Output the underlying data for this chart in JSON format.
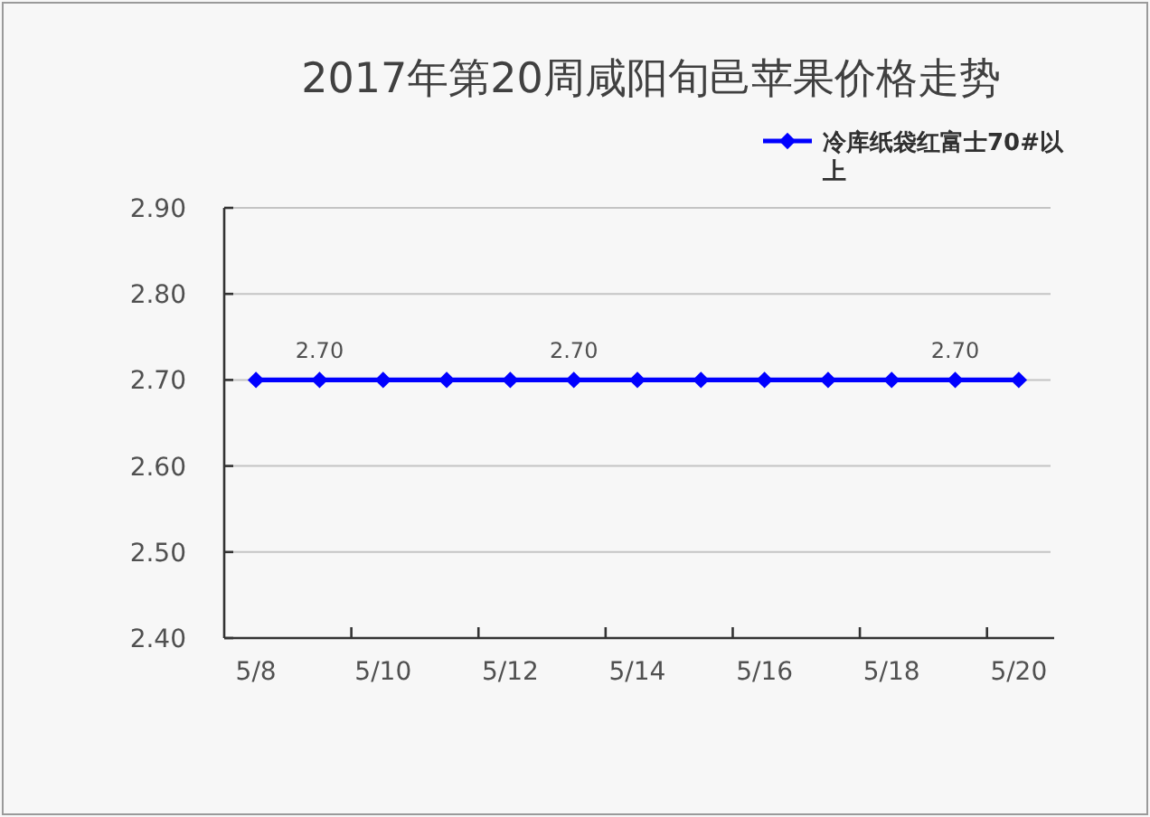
{
  "chart_data": {
    "type": "line",
    "title": "2017年第20周咸阳旬邑苹果价格走势",
    "categories": [
      "5/8",
      null,
      "5/10",
      null,
      "5/12",
      null,
      "5/14",
      null,
      "5/16",
      null,
      "5/18",
      null,
      "5/20"
    ],
    "series": [
      {
        "name": "冷库纸袋红富士70#以上",
        "color": "#0000ff",
        "values": [
          2.7,
          2.7,
          2.7,
          2.7,
          2.7,
          2.7,
          2.7,
          2.7,
          2.7,
          2.7,
          2.7,
          2.7,
          2.7
        ],
        "value_labels": [
          null,
          "2.70",
          null,
          null,
          null,
          "2.70",
          null,
          null,
          null,
          null,
          null,
          "2.70",
          null
        ]
      }
    ],
    "ylim": [
      2.4,
      2.9
    ],
    "yticks": [
      {
        "value": 2.4,
        "label": "2.40"
      },
      {
        "value": 2.5,
        "label": "2.50"
      },
      {
        "value": 2.6,
        "label": "2.60"
      },
      {
        "value": 2.7,
        "label": "2.70"
      },
      {
        "value": 2.8,
        "label": "2.80"
      },
      {
        "value": 2.9,
        "label": "2.90"
      }
    ],
    "grid": "y",
    "legend": "top right",
    "marker": "diamond",
    "line_style": "solid"
  }
}
